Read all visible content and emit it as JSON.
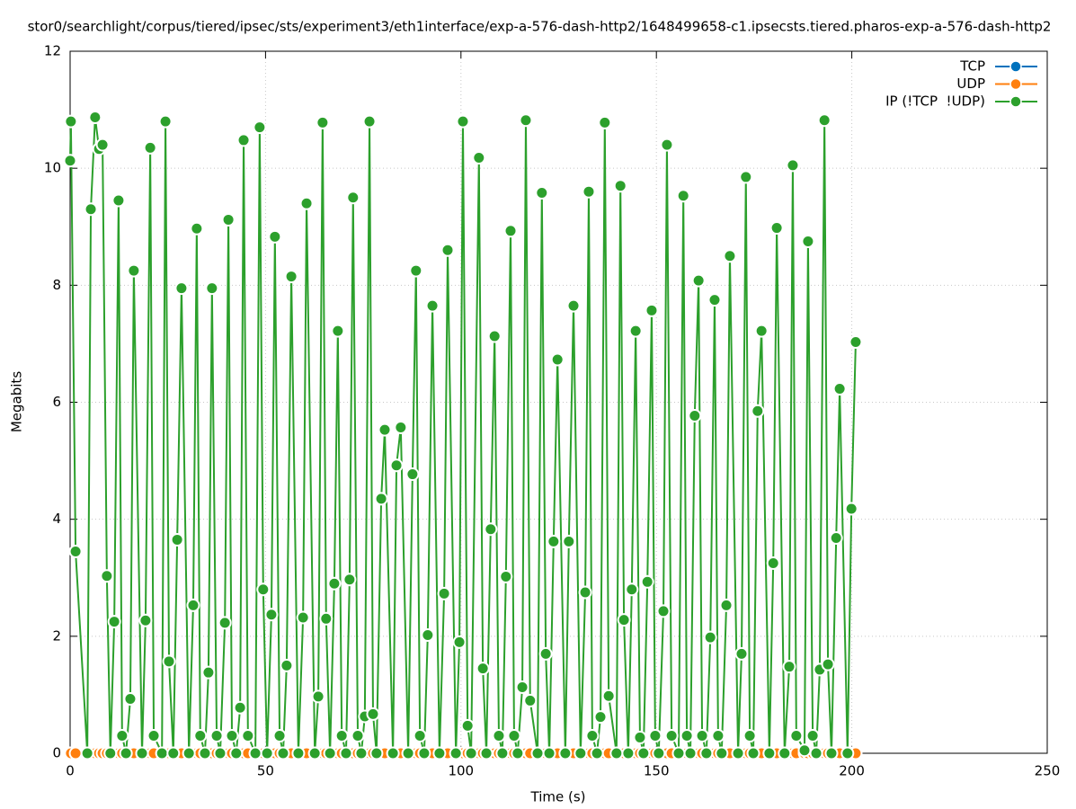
{
  "chart_data": {
    "type": "line",
    "title": "stor0/searchlight/corpus/tiered/ipsec/sts/experiment3/eth1interface/exp-a-576-dash-http2/1648499658-c1.ipsecsts.tiered.pharos-exp-a-576-dash-http2",
    "x_label": "Time (s)",
    "y_label": "Megabits",
    "x": [
      0,
      0.2,
      1.4,
      4.4,
      5.3,
      6.4,
      7.4,
      8.3,
      9.4,
      10.3,
      11.3,
      12.4,
      13.3,
      14.3,
      15.4,
      16.3,
      18.4,
      19.3,
      20.5,
      21.4,
      23.5,
      24.4,
      25.3,
      26.4,
      27.4,
      28.5,
      30.4,
      31.5,
      32.4,
      33.3,
      34.5,
      35.4,
      36.3,
      37.5,
      38.4,
      39.6,
      40.5,
      41.4,
      42.5,
      43.5,
      44.4,
      45.5,
      47.4,
      48.5,
      49.4,
      50.4,
      51.5,
      52.4,
      53.6,
      54.5,
      55.4,
      56.6,
      58.4,
      59.6,
      60.5,
      62.6,
      63.5,
      64.6,
      65.5,
      66.5,
      67.6,
      68.5,
      69.5,
      70.6,
      71.5,
      72.4,
      73.6,
      74.5,
      75.4,
      76.6,
      77.5,
      78.4,
      79.6,
      80.5,
      82.6,
      83.5,
      84.6,
      86.5,
      87.6,
      88.5,
      89.5,
      90.6,
      91.5,
      92.7,
      94.5,
      95.7,
      96.6,
      98.7,
      99.6,
      100.5,
      101.7,
      102.6,
      104.6,
      105.6,
      106.5,
      107.6,
      108.6,
      109.7,
      110.6,
      111.5,
      112.7,
      113.6,
      114.5,
      115.7,
      116.6,
      117.7,
      119.6,
      120.7,
      121.7,
      122.6,
      123.7,
      124.7,
      126.7,
      127.6,
      128.8,
      130.6,
      131.8,
      132.7,
      133.6,
      134.8,
      135.7,
      136.8,
      137.8,
      139.8,
      140.8,
      141.7,
      142.8,
      143.7,
      144.7,
      145.8,
      146.7,
      147.7,
      148.8,
      149.7,
      150.6,
      151.8,
      152.7,
      153.9,
      155.7,
      156.9,
      157.8,
      158.7,
      159.8,
      160.8,
      161.7,
      162.8,
      163.8,
      164.9,
      165.8,
      166.7,
      167.9,
      168.8,
      170.9,
      171.8,
      172.9,
      173.9,
      174.8,
      175.9,
      176.9,
      178.9,
      179.9,
      180.8,
      182.8,
      184.0,
      184.9,
      185.8,
      187.9,
      188.8,
      190.0,
      190.9,
      191.8,
      193.0,
      193.9,
      194.8,
      196.0,
      196.9,
      198.9,
      199.9,
      201.0
    ],
    "series": [
      {
        "name": "TCP",
        "color": "#0072bd",
        "values": [
          0,
          0,
          0,
          0,
          0,
          0,
          0,
          0,
          0,
          0,
          0,
          0,
          0,
          0,
          0,
          0,
          0,
          0,
          0,
          0,
          0,
          0,
          0,
          0,
          0,
          0,
          0,
          0,
          0,
          0,
          0,
          0,
          0,
          0,
          0,
          0,
          0,
          0,
          0,
          0,
          0,
          0,
          0,
          0,
          0,
          0,
          0,
          0,
          0,
          0,
          0,
          0,
          0,
          0,
          0,
          0,
          0,
          0,
          0,
          0,
          0,
          0,
          0,
          0,
          0,
          0,
          0,
          0,
          0,
          0,
          0,
          0,
          0,
          0,
          0,
          0,
          0,
          0,
          0,
          0,
          0,
          0,
          0,
          0,
          0,
          0,
          0,
          0,
          0,
          0,
          0,
          0,
          0,
          0,
          0,
          0,
          0,
          0,
          0,
          0,
          0,
          0,
          0,
          0,
          0,
          0,
          0,
          0,
          0,
          0,
          0,
          0,
          0,
          0,
          0,
          0,
          0,
          0,
          0,
          0,
          0,
          0,
          0,
          0,
          0,
          0,
          0,
          0,
          0,
          0,
          0,
          0,
          0,
          0,
          0,
          0,
          0,
          0,
          0,
          0,
          0,
          0,
          0,
          0,
          0,
          0,
          0,
          0,
          0,
          0,
          0,
          0,
          0,
          0,
          0,
          0,
          0,
          0,
          0,
          0,
          0,
          0,
          0,
          0,
          0,
          0,
          0,
          0,
          0,
          0,
          0,
          0,
          0,
          0,
          0,
          0,
          0,
          0,
          0
        ]
      },
      {
        "name": "UDP",
        "color": "#ff7f0e",
        "values": [
          0,
          0,
          0,
          0,
          0,
          0,
          0,
          0,
          0,
          0,
          0,
          0,
          0,
          0,
          0,
          0,
          0,
          0,
          0,
          0,
          0,
          0,
          0,
          0,
          0,
          0,
          0,
          0,
          0,
          0,
          0,
          0,
          0,
          0,
          0,
          0,
          0,
          0,
          0,
          0,
          0,
          0,
          0,
          0,
          0,
          0,
          0,
          0,
          0,
          0,
          0,
          0,
          0,
          0,
          0,
          0,
          0,
          0,
          0,
          0,
          0,
          0,
          0,
          0,
          0,
          0,
          0,
          0,
          0,
          0,
          0,
          0,
          0,
          0,
          0,
          0,
          0,
          0,
          0,
          0,
          0,
          0,
          0,
          0,
          0,
          0,
          0,
          0,
          0,
          0,
          0,
          0,
          0,
          0,
          0,
          0,
          0,
          0,
          0,
          0,
          0,
          0,
          0,
          0,
          0,
          0,
          0,
          0,
          0,
          0,
          0,
          0,
          0,
          0,
          0,
          0,
          0,
          0,
          0,
          0,
          0,
          0,
          0,
          0,
          0,
          0,
          0,
          0,
          0,
          0,
          0,
          0,
          0,
          0,
          0,
          0,
          0,
          0,
          0,
          0,
          0,
          0,
          0,
          0,
          0,
          0,
          0,
          0,
          0,
          0,
          0,
          0,
          0,
          0,
          0,
          0,
          0,
          0,
          0,
          0,
          0,
          0,
          0,
          0,
          0,
          0,
          0,
          0,
          0,
          0,
          0,
          0,
          0,
          0,
          0,
          0,
          0,
          0,
          0
        ]
      },
      {
        "name": "IP (!TCP  !UDP)",
        "color": "#2ca02c",
        "values": [
          10.13,
          10.8,
          3.45,
          0,
          9.3,
          10.87,
          10.33,
          10.4,
          3.03,
          0,
          2.25,
          9.45,
          0.3,
          0,
          0.93,
          8.25,
          0,
          2.27,
          10.35,
          0.3,
          0,
          10.8,
          1.57,
          0,
          3.65,
          7.95,
          0,
          2.53,
          8.97,
          0.3,
          0,
          1.38,
          7.95,
          0.3,
          0,
          2.23,
          9.12,
          0.3,
          0,
          0.78,
          10.48,
          0.3,
          0,
          10.7,
          2.8,
          0,
          2.37,
          8.83,
          0.3,
          0,
          1.5,
          8.15,
          0,
          2.32,
          9.4,
          0,
          0.97,
          10.78,
          2.3,
          0,
          2.9,
          7.22,
          0.3,
          0,
          2.97,
          9.5,
          0.3,
          0,
          0.63,
          10.8,
          0.67,
          0,
          4.35,
          5.53,
          0,
          4.92,
          5.57,
          0,
          4.77,
          8.25,
          0.3,
          0,
          2.02,
          7.65,
          0,
          2.73,
          8.6,
          0,
          1.9,
          10.8,
          0.47,
          0,
          10.18,
          1.45,
          0,
          3.83,
          7.13,
          0.3,
          0,
          3.02,
          8.93,
          0.3,
          0,
          1.13,
          10.82,
          0.9,
          0,
          9.58,
          1.7,
          0,
          3.62,
          6.73,
          0,
          3.62,
          7.65,
          0,
          2.75,
          9.6,
          0.3,
          0,
          0.62,
          10.78,
          0.98,
          0,
          9.7,
          2.28,
          0,
          2.8,
          7.22,
          0.27,
          0,
          2.93,
          7.57,
          0.3,
          0,
          2.43,
          10.4,
          0.3,
          0,
          9.53,
          0.3,
          0,
          5.77,
          8.08,
          0.3,
          0,
          1.98,
          7.75,
          0.3,
          0,
          2.53,
          8.5,
          0,
          1.7,
          9.85,
          0.3,
          0,
          5.85,
          7.22,
          0,
          3.25,
          8.98,
          0,
          1.48,
          10.05,
          0.3,
          0.05,
          8.75,
          0.3,
          0,
          1.43,
          10.82,
          1.52,
          0,
          3.68,
          6.23,
          0,
          4.18,
          7.03
        ]
      }
    ],
    "xlim": [
      0,
      250
    ],
    "xticks": [
      0,
      50,
      100,
      150,
      200,
      250
    ],
    "ylim": [
      0,
      12
    ],
    "yticks": [
      0,
      2,
      4,
      6,
      8,
      10,
      12
    ],
    "grid": true,
    "legend": "top-right"
  }
}
